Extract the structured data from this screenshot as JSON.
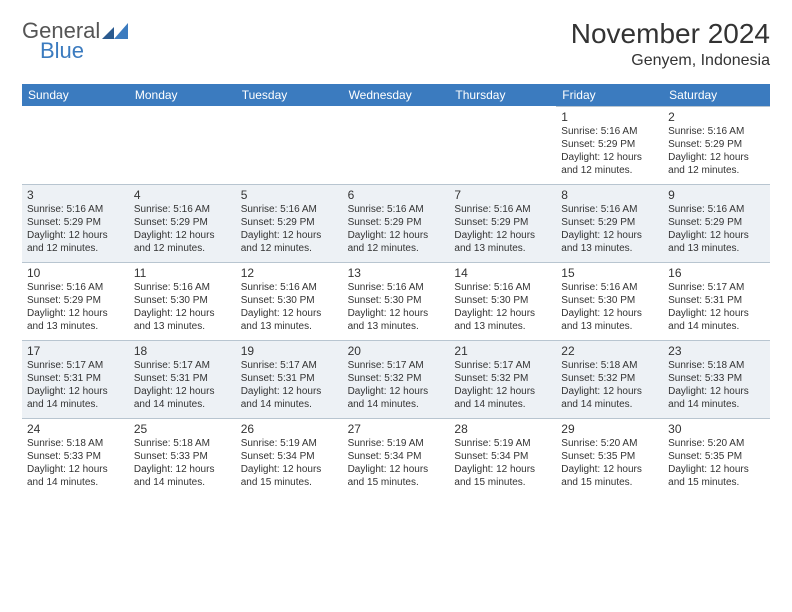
{
  "brand": {
    "text1": "General",
    "text2": "Blue",
    "logo_color": "#3b7bbf"
  },
  "title": "November 2024",
  "location": "Genyem, Indonesia",
  "colors": {
    "header_bg": "#3b7bbf",
    "header_text": "#ffffff",
    "shaded_bg": "#edf1f5",
    "cell_border": "#b8c5d0",
    "text": "#333333"
  },
  "typography": {
    "title_fontsize": 28,
    "location_fontsize": 16,
    "weekday_fontsize": 12,
    "daynum_fontsize": 12,
    "dayinfo_fontsize": 10
  },
  "weekdays": [
    "Sunday",
    "Monday",
    "Tuesday",
    "Wednesday",
    "Thursday",
    "Friday",
    "Saturday"
  ],
  "weeks": [
    [
      {
        "empty": true
      },
      {
        "empty": true
      },
      {
        "empty": true
      },
      {
        "empty": true
      },
      {
        "empty": true
      },
      {
        "day": "1",
        "shaded": false,
        "sunrise": "Sunrise: 5:16 AM",
        "sunset": "Sunset: 5:29 PM",
        "daylight": "Daylight: 12 hours and 12 minutes."
      },
      {
        "day": "2",
        "shaded": false,
        "sunrise": "Sunrise: 5:16 AM",
        "sunset": "Sunset: 5:29 PM",
        "daylight": "Daylight: 12 hours and 12 minutes."
      }
    ],
    [
      {
        "day": "3",
        "shaded": true,
        "sunrise": "Sunrise: 5:16 AM",
        "sunset": "Sunset: 5:29 PM",
        "daylight": "Daylight: 12 hours and 12 minutes."
      },
      {
        "day": "4",
        "shaded": true,
        "sunrise": "Sunrise: 5:16 AM",
        "sunset": "Sunset: 5:29 PM",
        "daylight": "Daylight: 12 hours and 12 minutes."
      },
      {
        "day": "5",
        "shaded": true,
        "sunrise": "Sunrise: 5:16 AM",
        "sunset": "Sunset: 5:29 PM",
        "daylight": "Daylight: 12 hours and 12 minutes."
      },
      {
        "day": "6",
        "shaded": true,
        "sunrise": "Sunrise: 5:16 AM",
        "sunset": "Sunset: 5:29 PM",
        "daylight": "Daylight: 12 hours and 12 minutes."
      },
      {
        "day": "7",
        "shaded": true,
        "sunrise": "Sunrise: 5:16 AM",
        "sunset": "Sunset: 5:29 PM",
        "daylight": "Daylight: 12 hours and 13 minutes."
      },
      {
        "day": "8",
        "shaded": true,
        "sunrise": "Sunrise: 5:16 AM",
        "sunset": "Sunset: 5:29 PM",
        "daylight": "Daylight: 12 hours and 13 minutes."
      },
      {
        "day": "9",
        "shaded": true,
        "sunrise": "Sunrise: 5:16 AM",
        "sunset": "Sunset: 5:29 PM",
        "daylight": "Daylight: 12 hours and 13 minutes."
      }
    ],
    [
      {
        "day": "10",
        "shaded": false,
        "sunrise": "Sunrise: 5:16 AM",
        "sunset": "Sunset: 5:29 PM",
        "daylight": "Daylight: 12 hours and 13 minutes."
      },
      {
        "day": "11",
        "shaded": false,
        "sunrise": "Sunrise: 5:16 AM",
        "sunset": "Sunset: 5:30 PM",
        "daylight": "Daylight: 12 hours and 13 minutes."
      },
      {
        "day": "12",
        "shaded": false,
        "sunrise": "Sunrise: 5:16 AM",
        "sunset": "Sunset: 5:30 PM",
        "daylight": "Daylight: 12 hours and 13 minutes."
      },
      {
        "day": "13",
        "shaded": false,
        "sunrise": "Sunrise: 5:16 AM",
        "sunset": "Sunset: 5:30 PM",
        "daylight": "Daylight: 12 hours and 13 minutes."
      },
      {
        "day": "14",
        "shaded": false,
        "sunrise": "Sunrise: 5:16 AM",
        "sunset": "Sunset: 5:30 PM",
        "daylight": "Daylight: 12 hours and 13 minutes."
      },
      {
        "day": "15",
        "shaded": false,
        "sunrise": "Sunrise: 5:16 AM",
        "sunset": "Sunset: 5:30 PM",
        "daylight": "Daylight: 12 hours and 13 minutes."
      },
      {
        "day": "16",
        "shaded": false,
        "sunrise": "Sunrise: 5:17 AM",
        "sunset": "Sunset: 5:31 PM",
        "daylight": "Daylight: 12 hours and 14 minutes."
      }
    ],
    [
      {
        "day": "17",
        "shaded": true,
        "sunrise": "Sunrise: 5:17 AM",
        "sunset": "Sunset: 5:31 PM",
        "daylight": "Daylight: 12 hours and 14 minutes."
      },
      {
        "day": "18",
        "shaded": true,
        "sunrise": "Sunrise: 5:17 AM",
        "sunset": "Sunset: 5:31 PM",
        "daylight": "Daylight: 12 hours and 14 minutes."
      },
      {
        "day": "19",
        "shaded": true,
        "sunrise": "Sunrise: 5:17 AM",
        "sunset": "Sunset: 5:31 PM",
        "daylight": "Daylight: 12 hours and 14 minutes."
      },
      {
        "day": "20",
        "shaded": true,
        "sunrise": "Sunrise: 5:17 AM",
        "sunset": "Sunset: 5:32 PM",
        "daylight": "Daylight: 12 hours and 14 minutes."
      },
      {
        "day": "21",
        "shaded": true,
        "sunrise": "Sunrise: 5:17 AM",
        "sunset": "Sunset: 5:32 PM",
        "daylight": "Daylight: 12 hours and 14 minutes."
      },
      {
        "day": "22",
        "shaded": true,
        "sunrise": "Sunrise: 5:18 AM",
        "sunset": "Sunset: 5:32 PM",
        "daylight": "Daylight: 12 hours and 14 minutes."
      },
      {
        "day": "23",
        "shaded": true,
        "sunrise": "Sunrise: 5:18 AM",
        "sunset": "Sunset: 5:33 PM",
        "daylight": "Daylight: 12 hours and 14 minutes."
      }
    ],
    [
      {
        "day": "24",
        "shaded": false,
        "sunrise": "Sunrise: 5:18 AM",
        "sunset": "Sunset: 5:33 PM",
        "daylight": "Daylight: 12 hours and 14 minutes."
      },
      {
        "day": "25",
        "shaded": false,
        "sunrise": "Sunrise: 5:18 AM",
        "sunset": "Sunset: 5:33 PM",
        "daylight": "Daylight: 12 hours and 14 minutes."
      },
      {
        "day": "26",
        "shaded": false,
        "sunrise": "Sunrise: 5:19 AM",
        "sunset": "Sunset: 5:34 PM",
        "daylight": "Daylight: 12 hours and 15 minutes."
      },
      {
        "day": "27",
        "shaded": false,
        "sunrise": "Sunrise: 5:19 AM",
        "sunset": "Sunset: 5:34 PM",
        "daylight": "Daylight: 12 hours and 15 minutes."
      },
      {
        "day": "28",
        "shaded": false,
        "sunrise": "Sunrise: 5:19 AM",
        "sunset": "Sunset: 5:34 PM",
        "daylight": "Daylight: 12 hours and 15 minutes."
      },
      {
        "day": "29",
        "shaded": false,
        "sunrise": "Sunrise: 5:20 AM",
        "sunset": "Sunset: 5:35 PM",
        "daylight": "Daylight: 12 hours and 15 minutes."
      },
      {
        "day": "30",
        "shaded": false,
        "sunrise": "Sunrise: 5:20 AM",
        "sunset": "Sunset: 5:35 PM",
        "daylight": "Daylight: 12 hours and 15 minutes."
      }
    ]
  ]
}
